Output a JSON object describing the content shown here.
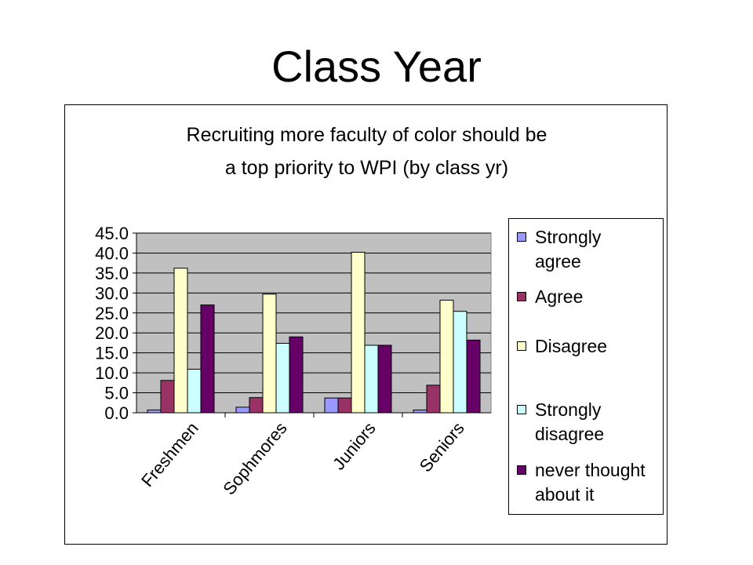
{
  "slide": {
    "title": "Class Year"
  },
  "colors": {
    "plot_background": "#c0c0c0",
    "strongly_agree": "#9999ff",
    "agree": "#993366",
    "disagree": "#ffffcc",
    "strongly_disagree": "#ccffff",
    "never_thought": "#660066"
  },
  "chart_data": {
    "type": "bar",
    "title": "Recruiting more faculty of color should be a top priority to WPI (by class yr)",
    "title_lines": [
      "Recruiting more faculty of color should be",
      "a top priority to WPI (by class yr)"
    ],
    "xlabel": "",
    "ylabel": "",
    "categories": [
      "Freshmen",
      "Sophmores",
      "Juniors",
      "Seniors"
    ],
    "ylim": [
      0,
      45
    ],
    "yticks": [
      "0.0",
      "5.0",
      "10.0",
      "15.0",
      "20.0",
      "25.0",
      "30.0",
      "35.0",
      "40.0",
      "45.0"
    ],
    "grid": true,
    "legend_position": "right",
    "series": [
      {
        "name": "Strongly agree",
        "legend_lines": [
          "Strongly",
          "agree"
        ],
        "color": "#9999ff",
        "values": [
          0.7,
          1.4,
          3.7,
          0.7
        ]
      },
      {
        "name": "Agree",
        "legend_lines": [
          "Agree"
        ],
        "color": "#993366",
        "values": [
          8.1,
          3.8,
          3.7,
          6.9
        ]
      },
      {
        "name": "Disagree",
        "legend_lines": [
          "Disagree"
        ],
        "color": "#ffffcc",
        "values": [
          36.2,
          29.7,
          40.2,
          28.2
        ]
      },
      {
        "name": "Strongly disagree",
        "legend_lines": [
          "Strongly",
          "disagree"
        ],
        "color": "#ccffff",
        "values": [
          10.9,
          17.4,
          16.9,
          25.4
        ]
      },
      {
        "name": "never thought about it",
        "legend_lines": [
          "never thought",
          "about it"
        ],
        "color": "#660066",
        "values": [
          27.0,
          19.0,
          16.9,
          18.2
        ]
      }
    ]
  }
}
